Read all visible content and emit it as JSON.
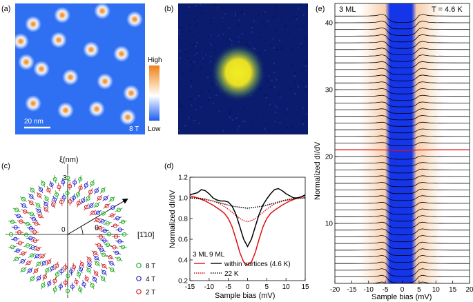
{
  "panels": {
    "a": {
      "label": "(a)",
      "scalebar": "20 nm",
      "field": "8 T",
      "colorbar": {
        "high": "High",
        "low": "Low"
      },
      "colors": {
        "background": "#2f6ff2",
        "vortex_glow": "#ffffff",
        "vortex_core": "#f0821e"
      }
    },
    "b": {
      "label": "(b)",
      "colors": {
        "background": "#0b1c6e",
        "blob": "#f2ee22"
      }
    },
    "c": {
      "label": "(c)",
      "axis_label": "ξ(nm)",
      "direction_label": "[1̄10]",
      "angle_label": "θ",
      "origin_label": "0",
      "radius_tick": "3",
      "legend": [
        {
          "text": "8 T",
          "color": "#22aa22"
        },
        {
          "text": "4 T",
          "color": "#2222cc"
        },
        {
          "text": "2 T",
          "color": "#cc2222"
        }
      ]
    },
    "d": {
      "label": "(d)",
      "ylabel": "Normalized dI/dV",
      "xlabel": "Sample bias (mV)",
      "legend": {
        "col1": "3 ML",
        "col2": "9 ML",
        "row1": "within vortices (4.6 K)",
        "row2": "22 K"
      }
    },
    "e": {
      "label": "(e)",
      "film": "3 ML",
      "temperature": "T = 4.6 K",
      "ylabel": "Normalized dI/dV",
      "xlabel": "Sample bias (mV)",
      "n_curves": 41,
      "highlight_index": 20
    }
  },
  "chart_data": [
    {
      "type": "line",
      "panel": "d",
      "xlabel": "Sample bias (mV)",
      "ylabel": "Normalized dI/dV",
      "xlim": [
        -15,
        15
      ],
      "ylim": [
        0.2,
        1.2
      ],
      "xticks": [
        -15,
        -10,
        -5,
        0,
        5,
        10,
        15
      ],
      "yticks": [
        0.2,
        0.4,
        0.6,
        0.8,
        1.0,
        1.2
      ],
      "series": [
        {
          "name": "3 ML within vortices (4.6 K)",
          "color": "#dd1111",
          "style": "solid",
          "x": [
            -15,
            -13,
            -11,
            -9,
            -7,
            -6,
            -5,
            -4,
            -3,
            -2,
            -1,
            0,
            1,
            2,
            3,
            4,
            5,
            6,
            7,
            9,
            11,
            13,
            15
          ],
          "y": [
            1.02,
            1.0,
            0.97,
            0.93,
            0.88,
            0.85,
            0.8,
            0.72,
            0.6,
            0.47,
            0.38,
            0.35,
            0.38,
            0.47,
            0.6,
            0.72,
            0.8,
            0.85,
            0.88,
            0.93,
            0.97,
            1.0,
            1.02
          ]
        },
        {
          "name": "3 ML 22 K",
          "color": "#dd1111",
          "style": "dotted",
          "x": [
            -15,
            -13,
            -11,
            -9,
            -7,
            -5,
            -4,
            -3,
            -2,
            -1,
            0,
            1,
            2,
            3,
            4,
            5,
            7,
            9,
            11,
            13,
            15
          ],
          "y": [
            1.0,
            1.0,
            0.99,
            0.97,
            0.94,
            0.89,
            0.86,
            0.83,
            0.8,
            0.78,
            0.77,
            0.78,
            0.8,
            0.83,
            0.86,
            0.89,
            0.94,
            0.97,
            0.99,
            1.0,
            1.0
          ]
        },
        {
          "name": "9 ML within vortices (4.6 K)",
          "color": "#000000",
          "style": "solid",
          "x": [
            -15,
            -14,
            -13,
            -12,
            -11,
            -10,
            -9,
            -8,
            -7,
            -6,
            -5,
            -4,
            -3,
            -2,
            -1,
            0,
            1,
            2,
            3,
            4,
            5,
            6,
            7,
            8,
            9,
            10,
            11,
            12,
            13,
            14,
            15
          ],
          "y": [
            1.03,
            1.04,
            1.05,
            1.08,
            1.07,
            1.04,
            1.0,
            0.98,
            0.97,
            0.97,
            0.96,
            0.92,
            0.84,
            0.72,
            0.6,
            0.53,
            0.6,
            0.72,
            0.84,
            0.93,
            0.99,
            1.04,
            1.08,
            1.09,
            1.07,
            1.04,
            1.02,
            1.0,
            1.0,
            1.01,
            1.03
          ]
        },
        {
          "name": "9 ML 22 K",
          "color": "#000000",
          "style": "dotted",
          "x": [
            -15,
            -12,
            -9,
            -6,
            -4,
            -2,
            0,
            2,
            4,
            6,
            9,
            12,
            15
          ],
          "y": [
            1.0,
            0.99,
            0.97,
            0.94,
            0.92,
            0.91,
            0.9,
            0.91,
            0.92,
            0.94,
            0.97,
            0.99,
            1.0
          ]
        }
      ]
    },
    {
      "type": "line",
      "panel": "e",
      "xlabel": "Sample bias (mV)",
      "ylabel": "Normalized dI/dV",
      "xlim": [
        -20,
        20
      ],
      "xticks": [
        -20,
        -15,
        -10,
        -5,
        0,
        5,
        10,
        15,
        20
      ],
      "yticks": [
        10,
        20,
        30,
        40
      ],
      "series": [
        {
          "name": "41 stacked spectra (offset 1 each)",
          "color": "#000000",
          "x": [
            -20,
            -15,
            -10,
            -8,
            -6,
            -5,
            -4,
            -3,
            -2,
            -1,
            0,
            1,
            2,
            3,
            4,
            5,
            6,
            8,
            10,
            15,
            20
          ],
          "y": [
            1.0,
            1.0,
            1.02,
            1.06,
            1.25,
            1.1,
            0.5,
            0.15,
            0.08,
            0.05,
            0.05,
            0.05,
            0.08,
            0.15,
            0.5,
            1.1,
            1.25,
            1.06,
            1.02,
            1.0,
            1.0
          ]
        },
        {
          "name": "center spectrum",
          "color": "#dd1111",
          "x": [
            -20,
            -10,
            -5,
            -3,
            -1,
            0,
            1,
            3,
            5,
            10,
            20
          ],
          "y": [
            1.0,
            1.0,
            0.98,
            0.95,
            0.9,
            0.88,
            0.9,
            0.95,
            0.98,
            1.0,
            1.0
          ]
        }
      ]
    }
  ]
}
